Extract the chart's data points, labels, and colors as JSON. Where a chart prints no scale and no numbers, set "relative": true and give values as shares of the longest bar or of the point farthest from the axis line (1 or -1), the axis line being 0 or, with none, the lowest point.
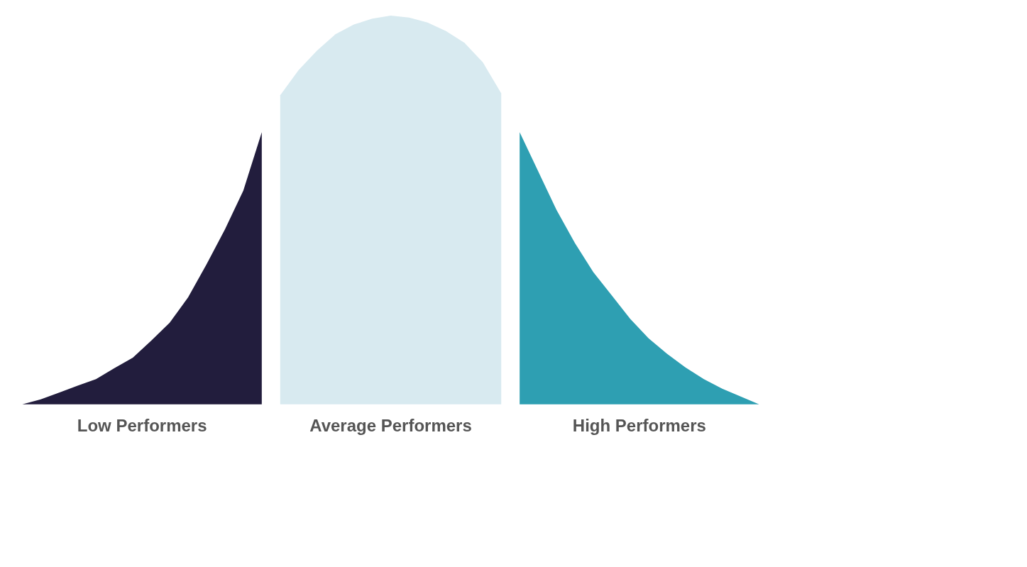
{
  "chart_data": {
    "type": "area",
    "relative": true,
    "categories": [
      null,
      null,
      null,
      null,
      null,
      null,
      null,
      null,
      null,
      null,
      null,
      null,
      null,
      null,
      null,
      null,
      null,
      null,
      null,
      null,
      null,
      null,
      null,
      null,
      null,
      null,
      null,
      null,
      null,
      null,
      null,
      null,
      null,
      null,
      null,
      null,
      null,
      null,
      null,
      null,
      null
    ],
    "series": [
      {
        "name": "Low Performers",
        "color": "#221d3d",
        "values": [
          0,
          0.013,
          0.03,
          0.048,
          0.065,
          0.093,
          0.12,
          0.164,
          0.21,
          0.275,
          0.36,
          0.45,
          0.55,
          0.7,
          null,
          null,
          null,
          null,
          null,
          null,
          null,
          null,
          null,
          null,
          null,
          null,
          null,
          null,
          null,
          null,
          null,
          null,
          null,
          null,
          null,
          null,
          null,
          null,
          null,
          null,
          null
        ]
      },
      {
        "name": "Average Performers",
        "color": "#d8eaf0",
        "values": [
          null,
          null,
          null,
          null,
          null,
          null,
          null,
          null,
          null,
          null,
          null,
          null,
          null,
          null,
          0.795,
          0.86,
          0.91,
          0.952,
          0.977,
          0.992,
          1,
          0.995,
          0.982,
          0.96,
          0.93,
          0.88,
          0.8,
          null,
          null,
          null,
          null,
          null,
          null,
          null,
          null,
          null,
          null,
          null,
          null,
          null,
          null
        ]
      },
      {
        "name": "High Performers",
        "color": "#2e9fb2",
        "values": [
          null,
          null,
          null,
          null,
          null,
          null,
          null,
          null,
          null,
          null,
          null,
          null,
          null,
          null,
          null,
          null,
          null,
          null,
          null,
          null,
          null,
          null,
          null,
          null,
          null,
          null,
          null,
          0.7,
          0.6,
          0.5,
          0.415,
          0.34,
          0.28,
          0.22,
          0.17,
          0.13,
          0.095,
          0.065,
          0.04,
          0.02,
          0
        ]
      }
    ]
  }
}
